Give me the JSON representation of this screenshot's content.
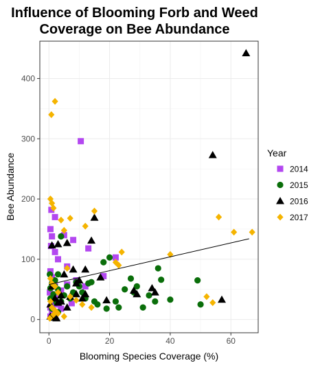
{
  "chart_data": {
    "type": "scatter",
    "title_line1": "Influence of Blooming Forb and Weed",
    "title_line2": "Coverage on Bee Abundance",
    "xlabel": "Blooming Species Coverage (%)",
    "ylabel": "Bee Abundance",
    "xlim": [
      -3,
      69
    ],
    "ylim": [
      -22,
      462
    ],
    "x_ticks": [
      0,
      20,
      40,
      60
    ],
    "y_ticks": [
      0,
      100,
      200,
      300,
      400
    ],
    "grid": true,
    "legend": {
      "title": "Year",
      "placement": "right"
    },
    "trend_line": {
      "x": [
        0,
        66
      ],
      "y": [
        58,
        134
      ]
    },
    "series": [
      {
        "name": "2014",
        "marker": "square",
        "color": "#b347f0",
        "points": [
          [
            10.5,
            296
          ],
          [
            0.8,
            182
          ],
          [
            2,
            170
          ],
          [
            0.5,
            150
          ],
          [
            1,
            138
          ],
          [
            0.7,
            122
          ],
          [
            2,
            112
          ],
          [
            3,
            100
          ],
          [
            5,
            140
          ],
          [
            8,
            132
          ],
          [
            13,
            118
          ],
          [
            22,
            103
          ],
          [
            6,
            88
          ],
          [
            18,
            72
          ],
          [
            9,
            65
          ],
          [
            6,
            58
          ],
          [
            0.5,
            80
          ],
          [
            1,
            70
          ],
          [
            2,
            55
          ],
          [
            0.3,
            45
          ],
          [
            4,
            48
          ],
          [
            7.5,
            27
          ],
          [
            12,
            55
          ],
          [
            2,
            36
          ],
          [
            0.5,
            20
          ],
          [
            1,
            10
          ],
          [
            4,
            18
          ],
          [
            0.5,
            5
          ],
          [
            2,
            25
          ]
        ]
      },
      {
        "name": "2015",
        "marker": "circle",
        "color": "#0a6e0a",
        "points": [
          [
            0.3,
            75
          ],
          [
            1,
            60
          ],
          [
            2,
            55
          ],
          [
            3,
            50
          ],
          [
            1.5,
            42
          ],
          [
            0.5,
            35
          ],
          [
            2.5,
            28
          ],
          [
            4,
            30
          ],
          [
            1,
            18
          ],
          [
            3,
            12
          ],
          [
            5,
            40
          ],
          [
            6,
            55
          ],
          [
            7,
            35
          ],
          [
            8,
            45
          ],
          [
            9,
            62
          ],
          [
            10,
            55
          ],
          [
            11,
            45
          ],
          [
            12,
            35
          ],
          [
            13,
            60
          ],
          [
            14,
            62
          ],
          [
            15,
            30
          ],
          [
            16,
            25
          ],
          [
            18,
            95
          ],
          [
            20,
            103
          ],
          [
            22,
            30
          ],
          [
            23,
            20
          ],
          [
            25,
            50
          ],
          [
            27,
            68
          ],
          [
            28,
            45
          ],
          [
            29,
            55
          ],
          [
            31,
            20
          ],
          [
            33,
            40
          ],
          [
            35,
            30
          ],
          [
            36,
            85
          ],
          [
            37,
            66
          ],
          [
            40,
            33
          ],
          [
            49,
            65
          ],
          [
            50,
            25
          ],
          [
            4,
            138
          ],
          [
            19,
            18
          ],
          [
            2,
            65
          ],
          [
            0.5,
            52
          ],
          [
            3,
            75
          ]
        ]
      },
      {
        "name": "2016",
        "marker": "triangle",
        "color": "#000000",
        "points": [
          [
            65,
            442
          ],
          [
            54,
            273
          ],
          [
            15,
            169
          ],
          [
            6,
            127
          ],
          [
            3,
            125
          ],
          [
            14,
            131
          ],
          [
            1,
            123
          ],
          [
            8,
            83
          ],
          [
            12,
            83
          ],
          [
            5,
            75
          ],
          [
            17,
            70
          ],
          [
            10,
            65
          ],
          [
            9,
            60
          ],
          [
            12,
            42
          ],
          [
            11,
            35
          ],
          [
            1,
            55
          ],
          [
            2,
            35
          ],
          [
            3,
            28
          ],
          [
            0.5,
            25
          ],
          [
            4,
            30
          ],
          [
            6,
            20
          ],
          [
            19,
            32
          ],
          [
            28,
            48
          ],
          [
            29,
            42
          ],
          [
            34,
            52
          ],
          [
            35,
            45
          ],
          [
            57,
            33
          ],
          [
            0.5,
            5
          ],
          [
            1.5,
            3
          ],
          [
            2.5,
            2
          ],
          [
            4,
            40
          ],
          [
            7,
            38
          ],
          [
            9,
            42
          ]
        ]
      },
      {
        "name": "2017",
        "marker": "diamond",
        "color": "#f5b400",
        "points": [
          [
            2,
            362
          ],
          [
            0.8,
            340
          ],
          [
            0.5,
            200
          ],
          [
            1,
            193
          ],
          [
            1.5,
            185
          ],
          [
            15,
            180
          ],
          [
            7,
            168
          ],
          [
            4,
            165
          ],
          [
            12,
            155
          ],
          [
            5,
            148
          ],
          [
            56,
            170
          ],
          [
            61,
            145
          ],
          [
            67,
            145
          ],
          [
            40,
            108
          ],
          [
            24,
            112
          ],
          [
            22,
            95
          ],
          [
            23,
            90
          ],
          [
            6,
            85
          ],
          [
            0.5,
            68
          ],
          [
            1,
            60
          ],
          [
            2,
            55
          ],
          [
            3,
            45
          ],
          [
            0.5,
            30
          ],
          [
            1,
            20
          ],
          [
            2,
            15
          ],
          [
            3,
            10
          ],
          [
            5,
            5
          ],
          [
            7,
            38
          ],
          [
            9,
            32
          ],
          [
            11,
            25
          ],
          [
            14,
            20
          ],
          [
            52,
            38
          ],
          [
            54,
            28
          ],
          [
            1.5,
            8
          ],
          [
            0.3,
            2
          ]
        ]
      }
    ]
  }
}
